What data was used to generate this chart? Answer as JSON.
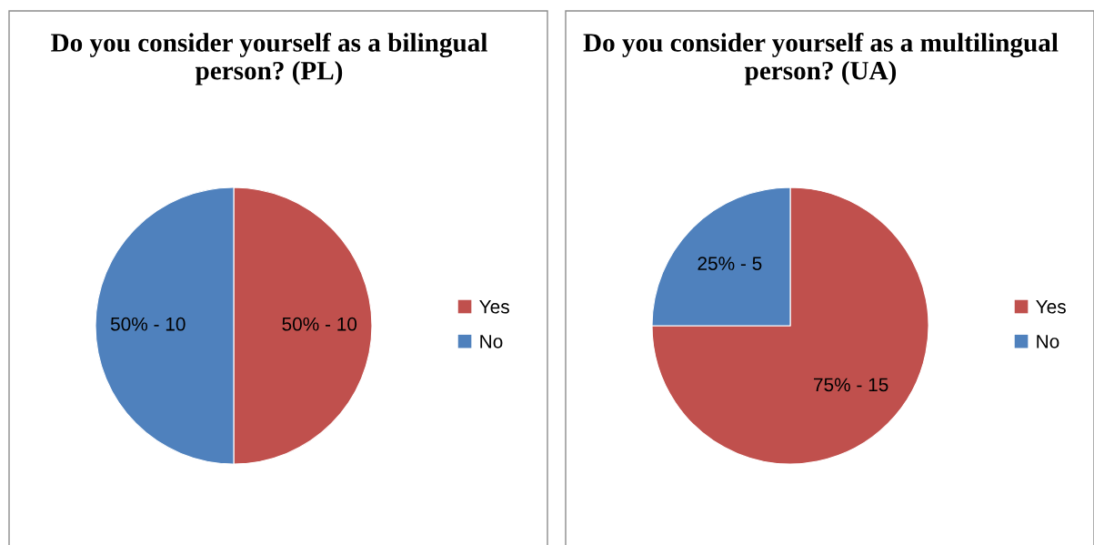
{
  "chart_data": [
    {
      "type": "pie",
      "title": "Do you consider yourself as a bilingual person? (PL)",
      "categories": [
        "Yes",
        "No"
      ],
      "values": [
        50,
        50
      ],
      "colors": [
        "#c0504d",
        "#4f81bd"
      ],
      "value_labels": [
        "50% - 10",
        "50% - 10"
      ],
      "legend": "right"
    },
    {
      "type": "pie",
      "title": "Do you consider yourself as a multilingual person? (UA)",
      "categories": [
        "Yes",
        "No"
      ],
      "values": [
        75,
        25
      ],
      "colors": [
        "#c0504d",
        "#4f81bd"
      ],
      "value_labels": [
        "75% - 15",
        "25% - 5"
      ],
      "legend": "right"
    }
  ]
}
